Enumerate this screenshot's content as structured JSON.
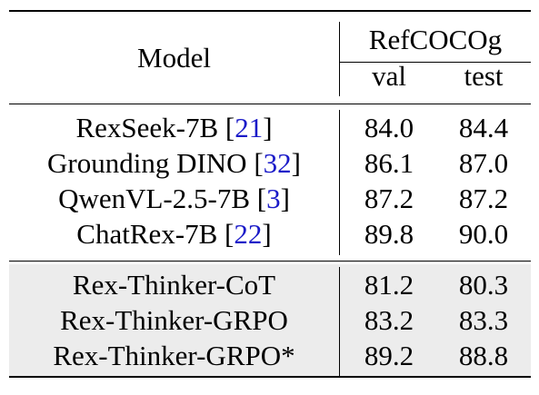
{
  "header": {
    "model_label": "Model",
    "group_label": "RefCOCOg",
    "val_label": "val",
    "test_label": "test"
  },
  "baselines": [
    {
      "name": "RexSeek-7B",
      "cite": "21",
      "val": "84.0",
      "test": "84.4"
    },
    {
      "name": "Grounding DINO",
      "cite": "32",
      "val": "86.1",
      "test": "87.0"
    },
    {
      "name": "QwenVL-2.5-7B",
      "cite": "3",
      "val": "87.2",
      "test": "87.2"
    },
    {
      "name": "ChatRex-7B",
      "cite": "22",
      "val": "89.8",
      "test": "90.0"
    }
  ],
  "ours": [
    {
      "name": "Rex-Thinker-CoT",
      "val": "81.2",
      "test": "80.3"
    },
    {
      "name": "Rex-Thinker-GRPO",
      "val": "83.2",
      "test": "83.3"
    },
    {
      "name": "Rex-Thinker-GRPO*",
      "val": "89.2",
      "test": "88.8"
    }
  ],
  "colors": {
    "citation": "#1a1ac8",
    "highlight_band": "#ececec"
  }
}
